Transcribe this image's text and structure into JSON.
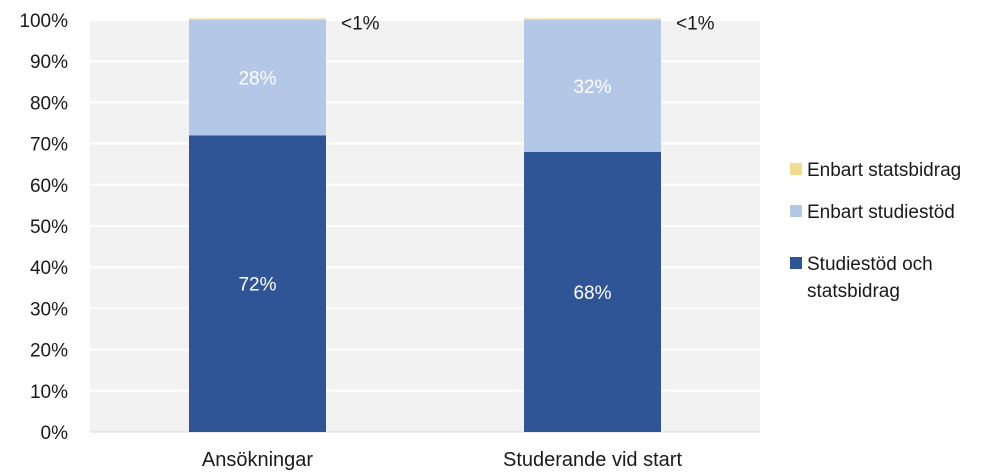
{
  "chart_data": {
    "type": "bar",
    "stacked": true,
    "categories": [
      "Ansökningar",
      "Studerande vid start"
    ],
    "series": [
      {
        "name": "Studiestöd och statsbidrag",
        "values": [
          72,
          68
        ],
        "labels": [
          "72%",
          "68%"
        ],
        "color": "#2f5597"
      },
      {
        "name": "Enbart studiestöd",
        "values": [
          28,
          32
        ],
        "labels": [
          "28%",
          "32%"
        ],
        "color": "#b4c7e7"
      },
      {
        "name": "Enbart statsbidrag",
        "values": [
          0.4,
          0.4
        ],
        "labels": [
          "<1%",
          "<1%"
        ],
        "color": "#f2dc91"
      }
    ],
    "legend": [
      "Enbart statsbidrag",
      "Enbart studiestöd",
      "Studiestöd och statsbidrag"
    ],
    "legend_position": "right",
    "ylim": [
      0,
      100
    ],
    "yticks": [
      "0%",
      "10%",
      "20%",
      "30%",
      "40%",
      "50%",
      "60%",
      "70%",
      "80%",
      "90%",
      "100%"
    ],
    "grid": true,
    "plot_background": "#f2f2f2",
    "gridline_color": "#ffffff"
  }
}
